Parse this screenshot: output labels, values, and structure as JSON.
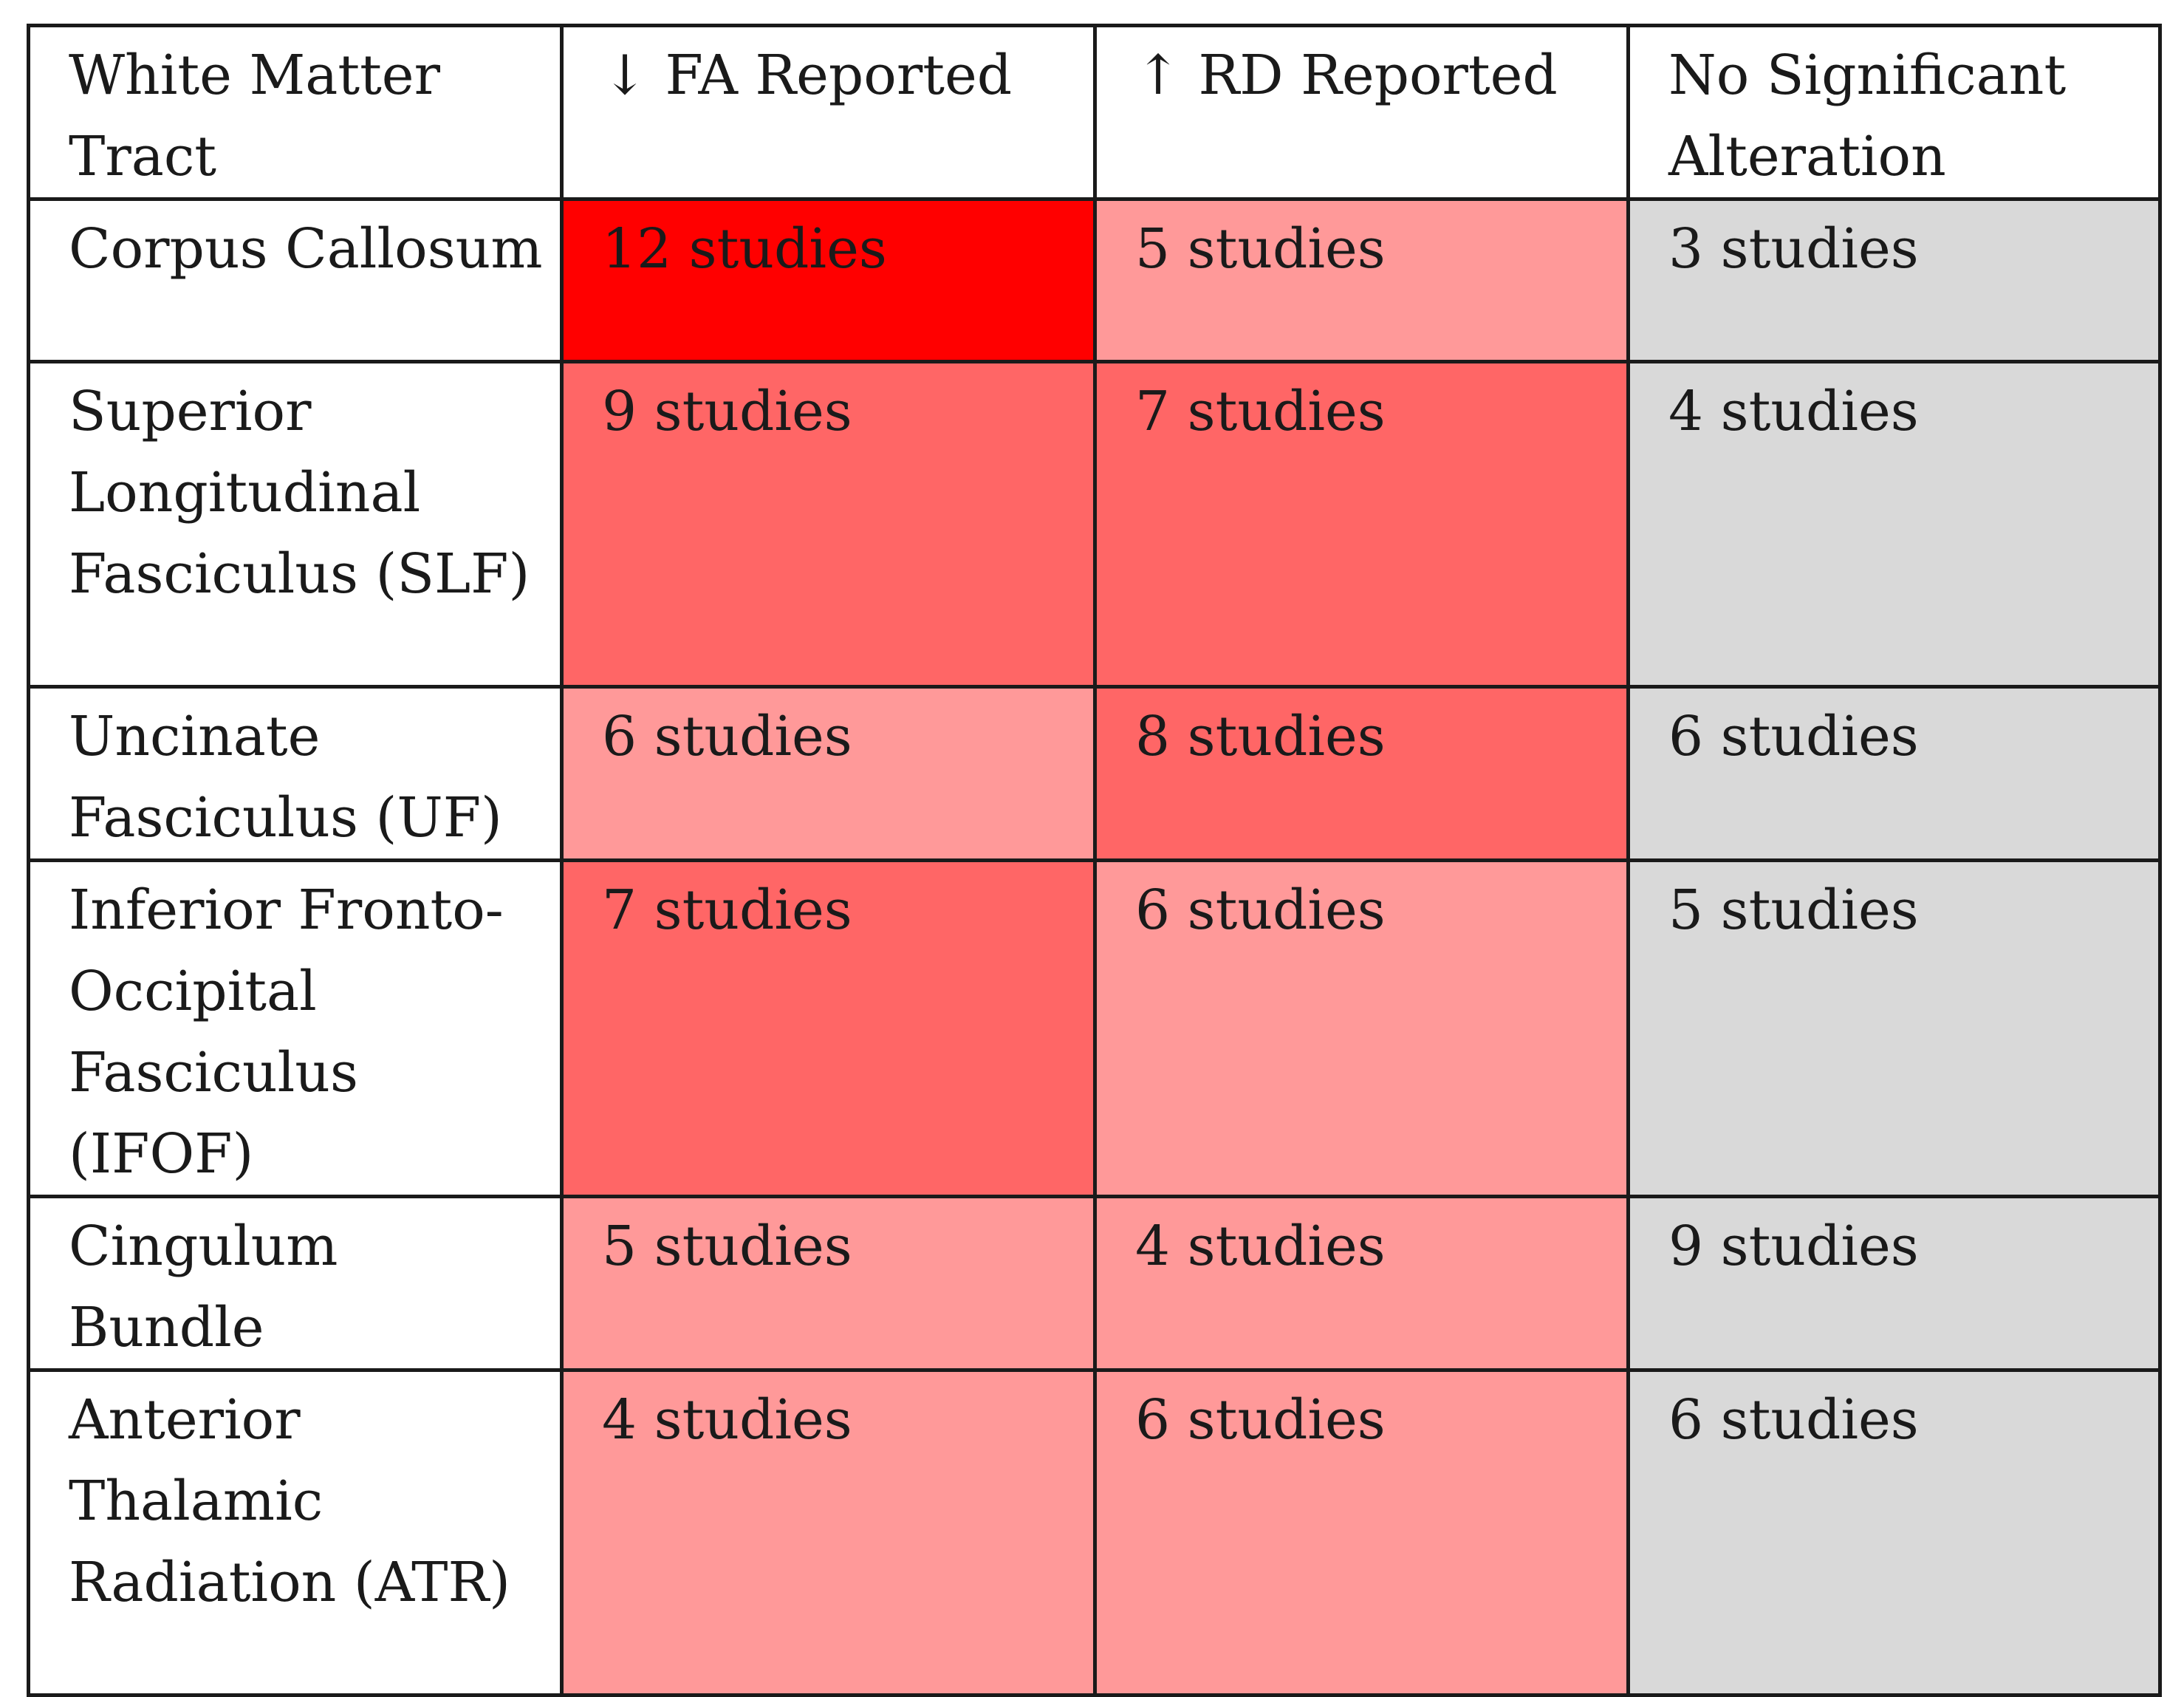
{
  "table": {
    "headers": [
      "White Matter Tract",
      "↓ FA Reported",
      "↑ RD Reported",
      "No Significant Alteration"
    ],
    "rows": [
      {
        "tract": "Corpus Callosum",
        "fa": "12 studies",
        "rd": "5 studies",
        "none": "3 studies",
        "fa_color": "#ff0000",
        "rd_color": "#ff9999",
        "none_color": "#d9d9d9"
      },
      {
        "tract": "Superior Longitudinal Fasciculus (SLF)",
        "fa": "9 studies",
        "rd": "7 studies",
        "none": "4 studies",
        "fa_color": "#ff6666",
        "rd_color": "#ff6666",
        "none_color": "#d9d9d9"
      },
      {
        "tract": "Uncinate Fasciculus (UF)",
        "fa": "6 studies",
        "rd": "8 studies",
        "none": "6 studies",
        "fa_color": "#ff9999",
        "rd_color": "#ff6666",
        "none_color": "#d9d9d9"
      },
      {
        "tract": "Inferior Fronto-Occipital Fasciculus (IFOF)",
        "fa": "7 studies",
        "rd": "6 studies",
        "none": "5 studies",
        "fa_color": "#ff6666",
        "rd_color": "#ff9999",
        "none_color": "#d9d9d9"
      },
      {
        "tract": "Cingulum Bundle",
        "fa": "5 studies",
        "rd": "4 studies",
        "none": "9 studies",
        "fa_color": "#ff9999",
        "rd_color": "#ff9999",
        "none_color": "#d9d9d9"
      },
      {
        "tract": "Anterior Thalamic Radiation (ATR)",
        "fa": "4 studies",
        "rd": "6 studies",
        "none": "6 studies",
        "fa_color": "#ff9999",
        "rd_color": "#ff9999",
        "none_color": "#d9d9d9"
      }
    ]
  }
}
